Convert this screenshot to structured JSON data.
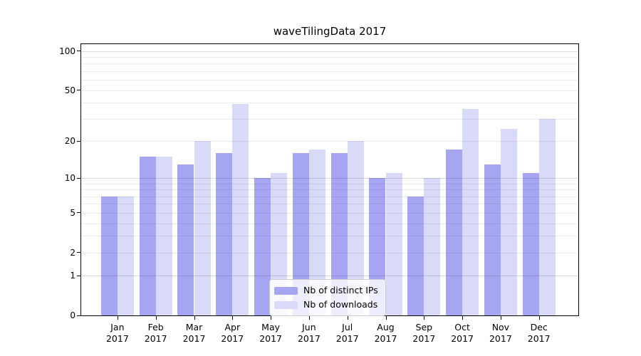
{
  "chart_data": {
    "type": "bar",
    "title": "waveTilingData 2017",
    "categories": [
      "Jan",
      "Feb",
      "Mar",
      "Apr",
      "May",
      "Jun",
      "Jul",
      "Aug",
      "Sep",
      "Oct",
      "Nov",
      "Dec"
    ],
    "year_label": "2017",
    "series": [
      {
        "name": "Nb of distinct IPs",
        "color": "#a5a5f2",
        "values": [
          7,
          15,
          13,
          16,
          10,
          16,
          16,
          10,
          7,
          17,
          13,
          11
        ]
      },
      {
        "name": "Nb of downloads",
        "color": "#d9d9f8",
        "values": [
          7,
          15,
          20,
          39,
          11,
          17,
          20,
          11,
          10,
          36,
          25,
          30
        ]
      }
    ],
    "yscale": "log1p",
    "yticks": [
      0,
      1,
      2,
      5,
      10,
      20,
      50,
      100
    ],
    "ylim": [
      0,
      113
    ],
    "grid": true,
    "legend_position": "lower center"
  }
}
